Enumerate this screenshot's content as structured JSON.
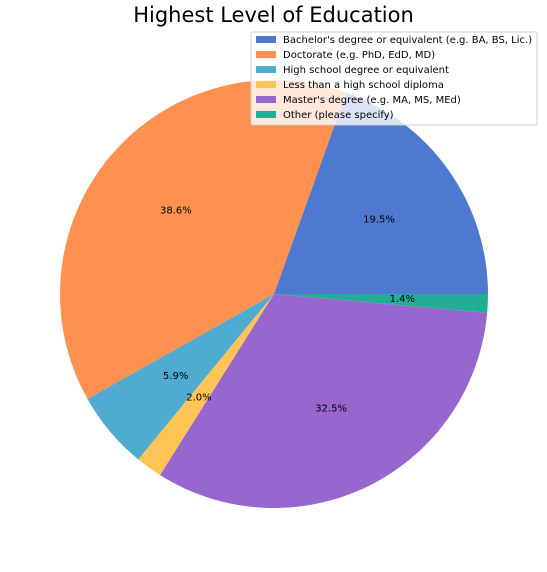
{
  "chart_data": {
    "type": "pie",
    "title": "Highest Level of Education",
    "legend_position": "top-right",
    "start_angle_deg": 0,
    "direction": "counterclockwise",
    "slices": [
      {
        "label": "Bachelor's degree or equivalent (e.g. BA, BS, Lic.)",
        "value": 19.5,
        "value_label": "19.5%",
        "color": "#4E79D0"
      },
      {
        "label": "Doctorate (e.g. PhD, EdD, MD)",
        "value": 38.6,
        "value_label": "38.6%",
        "color": "#FF9150"
      },
      {
        "label": "High school degree or equivalent",
        "value": 5.9,
        "value_label": "5.9%",
        "color": "#4FABD0"
      },
      {
        "label": "Less than a high school diploma",
        "value": 2.0,
        "value_label": "2.0%",
        "color": "#FFC455"
      },
      {
        "label": "Master's degree (e.g. MA, MS, MEd)",
        "value": 32.5,
        "value_label": "32.5%",
        "color": "#9766CF"
      },
      {
        "label": "Other (please specify)",
        "value": 1.4,
        "value_label": "1.4%",
        "color": "#21AD96"
      }
    ]
  }
}
